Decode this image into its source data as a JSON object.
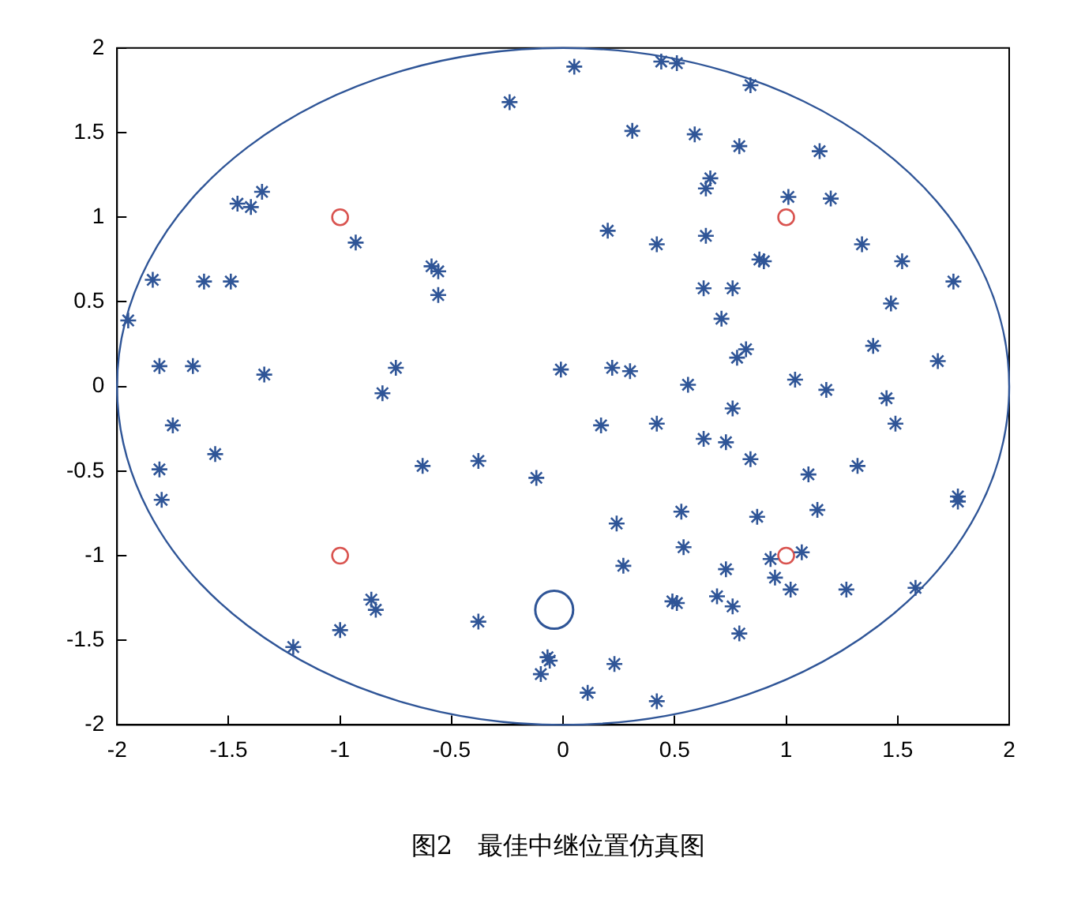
{
  "chart_data": {
    "type": "scatter",
    "title": "图2　最佳中继位置仿真图",
    "xlim": [
      -2,
      2
    ],
    "ylim": [
      -2,
      2
    ],
    "xticks": [
      -2,
      -1.5,
      -1,
      -0.5,
      0,
      0.5,
      1,
      1.5,
      2
    ],
    "yticks": [
      -2,
      -1.5,
      -1,
      -0.5,
      0,
      0.5,
      1,
      1.5,
      2
    ],
    "grid": false,
    "legend": false,
    "series": [
      {
        "color": "#2f5597",
        "marker": "cross",
        "x": [
          0.05,
          0.44,
          0.51,
          0.84,
          0.31,
          0.59,
          0.79,
          1.15,
          0.66,
          0.64,
          1.01,
          1.2,
          0.2,
          0.42,
          0.64,
          0.88,
          0.9,
          1.34,
          1.52,
          1.75,
          0.63,
          0.76,
          1.47,
          0.71,
          0.82,
          0.78,
          1.39,
          1.68,
          -0.01,
          0.22,
          0.3,
          0.56,
          1.04,
          1.18,
          1.45,
          0.76,
          1.49,
          0.17,
          0.42,
          0.63,
          0.73,
          0.84,
          1.1,
          1.32,
          1.77,
          1.77,
          0.24,
          0.53,
          0.87,
          1.14,
          0.27,
          0.54,
          0.73,
          0.93,
          1.07,
          0.95,
          1.02,
          1.27,
          1.58,
          0.49,
          0.51,
          0.69,
          0.76,
          0.79,
          0.23,
          0.11,
          0.42,
          -0.81,
          -1.75,
          -1.56,
          -1.81,
          -1.8,
          -0.63,
          -0.38,
          -0.12,
          -0.86,
          -0.84,
          -1.0,
          -1.21,
          -0.38,
          -0.07,
          -0.06,
          -0.1,
          -0.24,
          -1.35,
          -1.46,
          -1.4,
          -0.93,
          -0.59,
          -0.56,
          -0.56,
          -1.84,
          -1.61,
          -1.49,
          -1.95,
          -1.81,
          -1.66,
          -1.34,
          -0.75
        ],
        "values": [
          1.89,
          1.92,
          1.91,
          1.78,
          1.51,
          1.49,
          1.42,
          1.39,
          1.23,
          1.17,
          1.12,
          1.11,
          0.92,
          0.84,
          0.89,
          0.75,
          0.74,
          0.84,
          0.74,
          0.62,
          0.58,
          0.58,
          0.49,
          0.4,
          0.22,
          0.17,
          0.24,
          0.15,
          0.1,
          0.11,
          0.09,
          0.01,
          0.04,
          -0.02,
          -0.07,
          -0.13,
          -0.22,
          -0.23,
          -0.22,
          -0.31,
          -0.33,
          -0.43,
          -0.52,
          -0.47,
          -0.65,
          -0.68,
          -0.81,
          -0.74,
          -0.77,
          -0.73,
          -1.06,
          -0.95,
          -1.08,
          -1.02,
          -0.98,
          -1.13,
          -1.2,
          -1.2,
          -1.19,
          -1.27,
          -1.28,
          -1.24,
          -1.3,
          -1.46,
          -1.64,
          -1.81,
          -1.86,
          -0.04,
          -0.23,
          -0.4,
          -0.49,
          -0.67,
          -0.47,
          -0.44,
          -0.54,
          -1.26,
          -1.32,
          -1.44,
          -1.54,
          -1.39,
          -1.6,
          -1.62,
          -1.7,
          1.68,
          1.15,
          1.08,
          1.06,
          0.85,
          0.71,
          0.68,
          0.54,
          0.63,
          0.62,
          0.62,
          0.39,
          0.12,
          0.12,
          0.07,
          0.11
        ]
      },
      {
        "color": "#d9534f",
        "marker": "circle",
        "x": [
          -1,
          1,
          -1,
          1
        ],
        "values": [
          1,
          1,
          -1,
          -1
        ]
      },
      {
        "color": "#2f5597",
        "marker": "circle",
        "x": [
          -0.04
        ],
        "values": [
          -1.32
        ]
      }
    ]
  }
}
